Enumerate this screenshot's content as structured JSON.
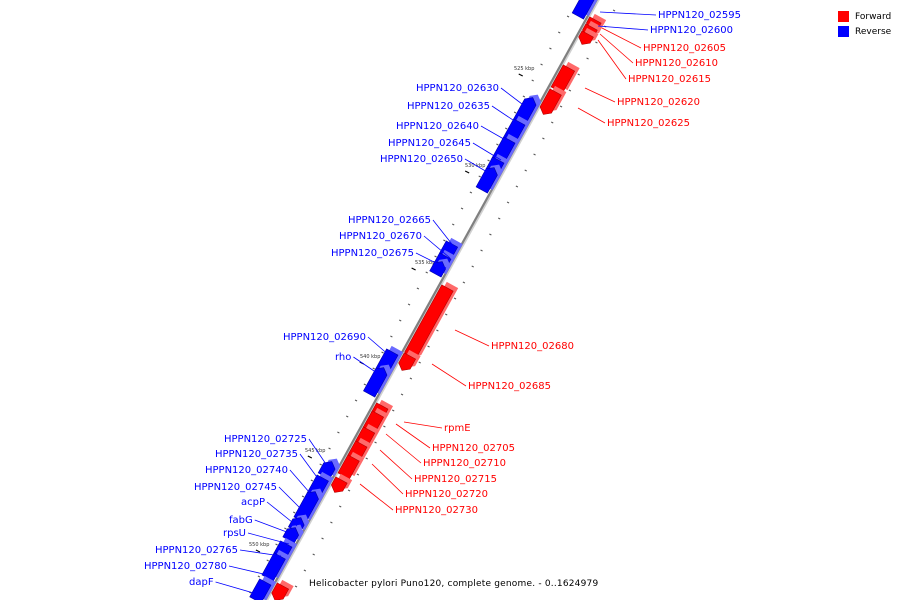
{
  "colors": {
    "forward": "#ff0000",
    "reverse": "#0000ff",
    "backbone": "#808080"
  },
  "legend": [
    {
      "label": "Forward",
      "strand": "forward"
    },
    {
      "label": "Reverse",
      "strand": "reverse"
    }
  ],
  "caption": "Helicobacter pylori Puno120, complete genome. - 0..1624979",
  "ticks": [
    "525 kbp",
    "530 kbp",
    "535 kbp",
    "540 kbp",
    "545 kbp",
    "550 kbp"
  ],
  "genes": [
    {
      "name": "HPPN120_02595",
      "strand": "reverse"
    },
    {
      "name": "HPPN120_02600",
      "strand": "reverse"
    },
    {
      "name": "HPPN120_02605",
      "strand": "forward"
    },
    {
      "name": "HPPN120_02610",
      "strand": "forward"
    },
    {
      "name": "HPPN120_02615",
      "strand": "forward"
    },
    {
      "name": "HPPN120_02620",
      "strand": "forward"
    },
    {
      "name": "HPPN120_02625",
      "strand": "forward"
    },
    {
      "name": "HPPN120_02630",
      "strand": "reverse"
    },
    {
      "name": "HPPN120_02635",
      "strand": "reverse"
    },
    {
      "name": "HPPN120_02640",
      "strand": "reverse"
    },
    {
      "name": "HPPN120_02645",
      "strand": "reverse"
    },
    {
      "name": "HPPN120_02650",
      "strand": "reverse"
    },
    {
      "name": "HPPN120_02665",
      "strand": "reverse"
    },
    {
      "name": "HPPN120_02670",
      "strand": "reverse"
    },
    {
      "name": "HPPN120_02675",
      "strand": "reverse"
    },
    {
      "name": "HPPN120_02680",
      "strand": "forward"
    },
    {
      "name": "HPPN120_02685",
      "strand": "forward"
    },
    {
      "name": "HPPN120_02690",
      "strand": "reverse"
    },
    {
      "name": "rho",
      "strand": "reverse"
    },
    {
      "name": "rpmE",
      "strand": "forward"
    },
    {
      "name": "HPPN120_02705",
      "strand": "forward"
    },
    {
      "name": "HPPN120_02710",
      "strand": "forward"
    },
    {
      "name": "HPPN120_02715",
      "strand": "forward"
    },
    {
      "name": "HPPN120_02720",
      "strand": "forward"
    },
    {
      "name": "HPPN120_02730",
      "strand": "forward"
    },
    {
      "name": "HPPN120_02725",
      "strand": "reverse"
    },
    {
      "name": "HPPN120_02735",
      "strand": "reverse"
    },
    {
      "name": "HPPN120_02740",
      "strand": "reverse"
    },
    {
      "name": "HPPN120_02745",
      "strand": "reverse"
    },
    {
      "name": "acpP",
      "strand": "reverse"
    },
    {
      "name": "fabG",
      "strand": "reverse"
    },
    {
      "name": "rpsU",
      "strand": "reverse"
    },
    {
      "name": "HPPN120_02765",
      "strand": "reverse"
    },
    {
      "name": "HPPN120_02780",
      "strand": "reverse"
    },
    {
      "name": "dapF",
      "strand": "reverse"
    }
  ]
}
